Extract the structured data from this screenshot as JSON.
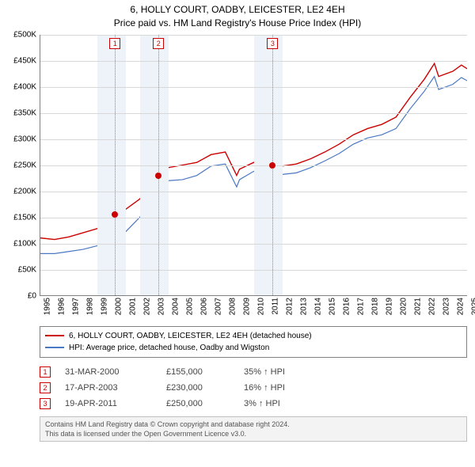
{
  "title": {
    "line1": "6, HOLLY COURT, OADBY, LEICESTER, LE2 4EH",
    "line2": "Price paid vs. HM Land Registry's House Price Index (HPI)"
  },
  "chart": {
    "type": "line",
    "background_color": "#ffffff",
    "grid_color": "#d8d8d8",
    "axis_color": "#808080",
    "shaded_band_color": "#eef2f9",
    "x": {
      "min": 1995,
      "max": 2025,
      "tick_step": 1
    },
    "y": {
      "min": 0,
      "max": 500000,
      "tick_step": 50000,
      "tick_labels": [
        "£0",
        "£50K",
        "£100K",
        "£150K",
        "£200K",
        "£250K",
        "£300K",
        "£350K",
        "£400K",
        "£450K",
        "£500K"
      ]
    },
    "series": [
      {
        "name": "6, HOLLY COURT, OADBY, LEICESTER, LE2 4EH (detached house)",
        "color": "#cc0000",
        "line_width": 1.4,
        "points": [
          [
            1995,
            110000
          ],
          [
            1996,
            107000
          ],
          [
            1997,
            112000
          ],
          [
            1998,
            120000
          ],
          [
            1999,
            128000
          ],
          [
            2000,
            155000
          ],
          [
            2001,
            165000
          ],
          [
            2002,
            185000
          ],
          [
            2003,
            230000
          ],
          [
            2003.4,
            270000
          ],
          [
            2004,
            245000
          ],
          [
            2005,
            250000
          ],
          [
            2006,
            255000
          ],
          [
            2007,
            270000
          ],
          [
            2008,
            275000
          ],
          [
            2008.8,
            230000
          ],
          [
            2009,
            242000
          ],
          [
            2010,
            255000
          ],
          [
            2010.5,
            248000
          ],
          [
            2011,
            250000
          ],
          [
            2011.5,
            246000
          ],
          [
            2012,
            248000
          ],
          [
            2013,
            252000
          ],
          [
            2014,
            262000
          ],
          [
            2015,
            275000
          ],
          [
            2016,
            290000
          ],
          [
            2017,
            308000
          ],
          [
            2018,
            320000
          ],
          [
            2019,
            328000
          ],
          [
            2020,
            342000
          ],
          [
            2021,
            380000
          ],
          [
            2022,
            415000
          ],
          [
            2022.7,
            445000
          ],
          [
            2023,
            420000
          ],
          [
            2024,
            430000
          ],
          [
            2024.6,
            442000
          ],
          [
            2025,
            435000
          ]
        ]
      },
      {
        "name": "HPI: Average price, detached house, Oadby and Wigston",
        "color": "#4a78c4",
        "line_width": 1.2,
        "points": [
          [
            1995,
            80000
          ],
          [
            1996,
            80000
          ],
          [
            1997,
            84000
          ],
          [
            1998,
            88000
          ],
          [
            1999,
            95000
          ],
          [
            2000,
            108000
          ],
          [
            2001,
            122000
          ],
          [
            2002,
            150000
          ],
          [
            2003,
            198000
          ],
          [
            2004,
            220000
          ],
          [
            2005,
            222000
          ],
          [
            2006,
            230000
          ],
          [
            2007,
            248000
          ],
          [
            2008,
            252000
          ],
          [
            2008.8,
            208000
          ],
          [
            2009,
            222000
          ],
          [
            2010,
            238000
          ],
          [
            2010.6,
            228000
          ],
          [
            2011,
            232000
          ],
          [
            2012,
            232000
          ],
          [
            2013,
            235000
          ],
          [
            2014,
            245000
          ],
          [
            2015,
            258000
          ],
          [
            2016,
            272000
          ],
          [
            2017,
            290000
          ],
          [
            2018,
            302000
          ],
          [
            2019,
            308000
          ],
          [
            2020,
            320000
          ],
          [
            2021,
            358000
          ],
          [
            2022,
            392000
          ],
          [
            2022.7,
            420000
          ],
          [
            2023,
            395000
          ],
          [
            2024,
            405000
          ],
          [
            2024.6,
            418000
          ],
          [
            2025,
            412000
          ]
        ]
      }
    ],
    "shaded_x_bands": [
      [
        1999,
        2001
      ],
      [
        2002,
        2004
      ],
      [
        2010,
        2012
      ]
    ],
    "markers": [
      {
        "index": "1",
        "x": 2000.24,
        "y": 155000,
        "dot_color": "#cc0000"
      },
      {
        "index": "2",
        "x": 2003.29,
        "y": 230000,
        "dot_color": "#cc0000"
      },
      {
        "index": "3",
        "x": 2011.3,
        "y": 250000,
        "dot_color": "#cc0000"
      }
    ]
  },
  "legend": {
    "items": [
      {
        "label": "6, HOLLY COURT, OADBY, LEICESTER, LE2 4EH (detached house)",
        "color": "#cc0000"
      },
      {
        "label": "HPI: Average price, detached house, Oadby and Wigston",
        "color": "#4a78c4"
      }
    ]
  },
  "marker_table": {
    "rows": [
      {
        "index": "1",
        "date": "31-MAR-2000",
        "price": "£155,000",
        "diff": "35% ↑ HPI"
      },
      {
        "index": "2",
        "date": "17-APR-2003",
        "price": "£230,000",
        "diff": "16% ↑ HPI"
      },
      {
        "index": "3",
        "date": "19-APR-2011",
        "price": "£250,000",
        "diff": "3% ↑ HPI"
      }
    ]
  },
  "attribution": {
    "line1": "Contains HM Land Registry data © Crown copyright and database right 2024.",
    "line2": "This data is licensed under the Open Government Licence v3.0."
  }
}
